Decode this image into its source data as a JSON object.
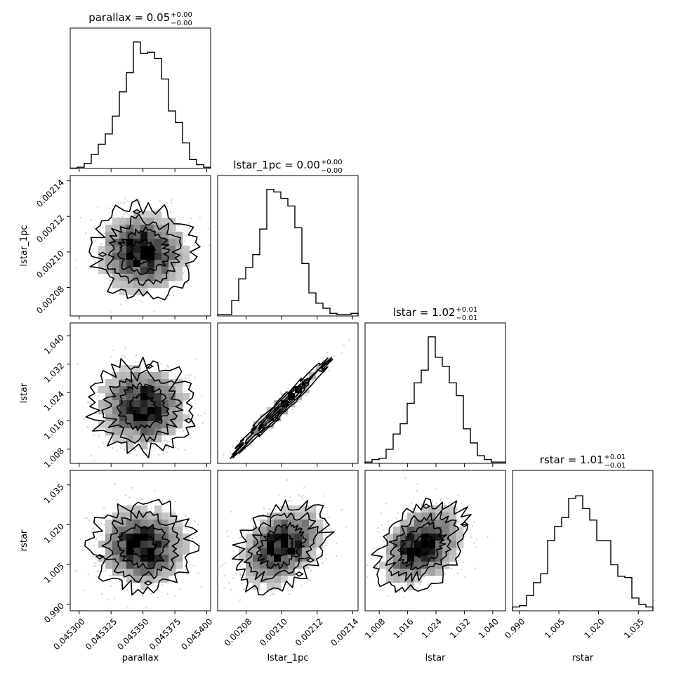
{
  "chart_data": {
    "type": "corner",
    "parameters": [
      "parallax",
      "lstar_1pc",
      "lstar",
      "rstar"
    ],
    "axis_labels": [
      "parallax",
      "lstar_1pc",
      "lstar",
      "rstar"
    ],
    "titles": [
      {
        "main": "parallax = 0.05",
        "sup": "+0.00",
        "sub": "−0.00"
      },
      {
        "main": "lstar_1pc = 0.00",
        "sup": "+0.00",
        "sub": "−0.00"
      },
      {
        "main": "lstar = 1.02",
        "sup": "+0.01",
        "sub": "−0.01"
      },
      {
        "main": "rstar = 1.01",
        "sup": "+0.01",
        "sub": "−0.01"
      }
    ],
    "ranges": [
      [
        0.045293,
        0.045403
      ],
      [
        0.002064,
        0.002143
      ],
      [
        1.004,
        1.0436
      ],
      [
        0.9875,
        1.0405
      ]
    ],
    "ticks": [
      {
        "values": [
          0.0453,
          0.045325,
          0.04535,
          0.045375,
          0.0454
        ],
        "labels": [
          "0.045300",
          "0.045325",
          "0.045350",
          "0.045375",
          "0.045400"
        ]
      },
      {
        "values": [
          0.00208,
          0.0021,
          0.00212,
          0.00214
        ],
        "labels": [
          "0.00208",
          "0.00210",
          "0.00212",
          "0.00214"
        ]
      },
      {
        "values": [
          1.008,
          1.016,
          1.024,
          1.032,
          1.04
        ],
        "labels": [
          "1.008",
          "1.016",
          "1.024",
          "1.032",
          "1.040"
        ]
      },
      {
        "values": [
          0.99,
          1.005,
          1.02,
          1.035
        ],
        "labels": [
          "0.990",
          "1.005",
          "1.020",
          "1.035"
        ]
      }
    ],
    "medians": [
      0.04535,
      0.0021,
      1.02,
      1.012
    ],
    "sigmas": [
      1.6e-05,
      1.05e-05,
      0.0052,
      0.0068
    ],
    "correlations": [
      [
        1,
        0,
        0,
        0
      ],
      [
        0,
        1,
        0.98,
        0.35
      ],
      [
        0,
        0.98,
        1,
        0.35
      ],
      [
        0,
        0.35,
        0.35,
        1
      ]
    ],
    "histograms": [
      [
        0.003,
        0.01,
        0.04,
        0.11,
        0.19,
        0.27,
        0.41,
        0.6,
        0.75,
        0.99,
        0.9,
        0.91,
        0.86,
        0.7,
        0.45,
        0.36,
        0.2,
        0.07,
        0.03,
        0.01
      ],
      [
        0.01,
        0.01,
        0.12,
        0.29,
        0.38,
        0.48,
        0.68,
        0.99,
        0.97,
        0.92,
        0.86,
        0.69,
        0.41,
        0.18,
        0.1,
        0.06,
        0.02,
        0.01,
        0.01,
        0.02
      ],
      [
        0.01,
        0.03,
        0.04,
        0.11,
        0.23,
        0.31,
        0.47,
        0.63,
        0.73,
        0.99,
        0.83,
        0.76,
        0.63,
        0.53,
        0.27,
        0.16,
        0.06,
        0.03,
        0.01,
        0.01
      ],
      [
        0.03,
        0.04,
        0.12,
        0.22,
        0.29,
        0.55,
        0.66,
        0.73,
        0.88,
        0.9,
        0.8,
        0.71,
        0.55,
        0.55,
        0.36,
        0.27,
        0.26,
        0.1,
        0.05,
        0.03
      ]
    ],
    "grid": false,
    "legend": "none"
  }
}
